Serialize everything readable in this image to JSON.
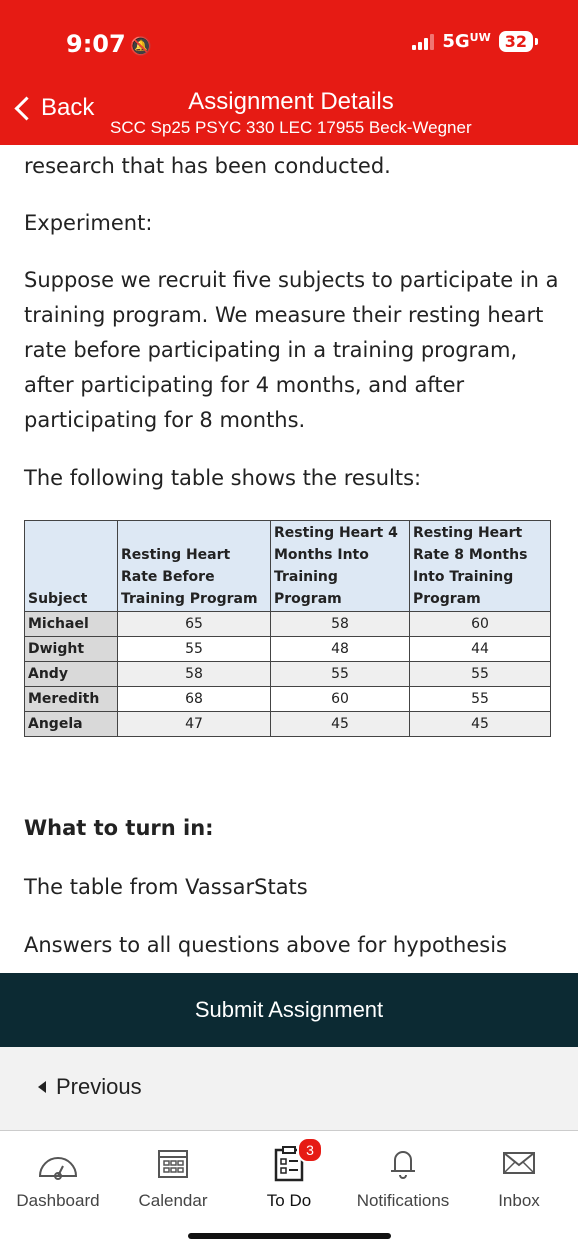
{
  "status_bar": {
    "time": "9:07",
    "network": "5G",
    "network_suffix": "UW",
    "battery": "32"
  },
  "nav": {
    "back_label": "Back",
    "title": "Assignment Details",
    "subtitle": "SCC Sp25 PSYC 330 LEC 17955 Beck-Wegner"
  },
  "content": {
    "p1": "research that has been conducted.",
    "p2": "Experiment:",
    "p3": "Suppose we recruit five subjects to participate in a training program. We measure their resting heart rate before participating in a training program, after participating for 4 months, and after participating for 8 months.",
    "p4": "The following table shows the results:",
    "turn_in_heading": "What to turn in:",
    "turn_in_1": "The table from VassarStats",
    "turn_in_2": "Answers to all questions above for hypothesis"
  },
  "table": {
    "headers": [
      "Subject",
      "Resting Heart Rate Before Training Program",
      "Resting Heart 4 Months Into Training Program",
      "Resting Heart Rate 8 Months Into Training Program"
    ],
    "rows": [
      [
        "Michael",
        "65",
        "58",
        "60"
      ],
      [
        "Dwight",
        "55",
        "48",
        "44"
      ],
      [
        "Andy",
        "58",
        "55",
        "55"
      ],
      [
        "Meredith",
        "68",
        "60",
        "55"
      ],
      [
        "Angela",
        "47",
        "45",
        "45"
      ]
    ]
  },
  "actions": {
    "submit_label": "Submit Assignment",
    "previous_label": "Previous"
  },
  "tabbar": {
    "dashboard": "Dashboard",
    "calendar": "Calendar",
    "todo": "To Do",
    "todo_badge": "3",
    "notifications": "Notifications",
    "inbox": "Inbox"
  },
  "colors": {
    "header_bg": "#e61b14",
    "submit_bg": "#0c2a33",
    "table_header_bg": "#dde8f4"
  }
}
